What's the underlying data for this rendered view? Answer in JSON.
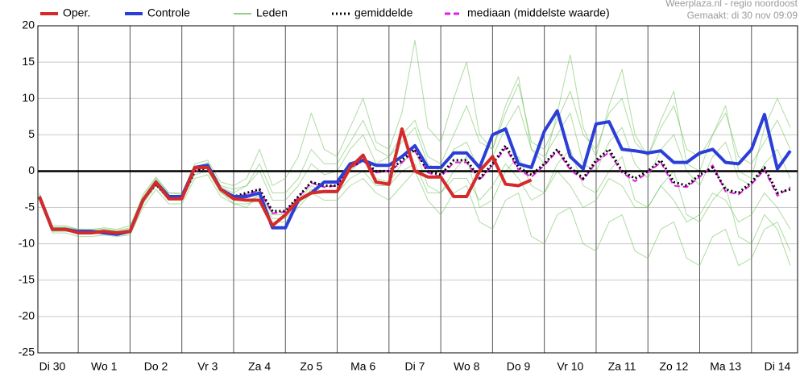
{
  "chart_data": {
    "type": "line",
    "credit_lines": [
      "Weerplaza.nl - regio noordoost",
      "Gemaakt: di 30 nov 09:09"
    ],
    "xlim": [
      0.22,
      14.89
    ],
    "xticks": [
      {
        "value": 0.5,
        "label": "Di 30"
      },
      {
        "value": 1.5,
        "label": "Wo 1"
      },
      {
        "value": 2.5,
        "label": "Do 2"
      },
      {
        "value": 3.5,
        "label": "Vr 3"
      },
      {
        "value": 4.5,
        "label": "Za 4"
      },
      {
        "value": 5.5,
        "label": "Zo 5"
      },
      {
        "value": 6.5,
        "label": "Ma 6"
      },
      {
        "value": 7.5,
        "label": "Di 7"
      },
      {
        "value": 8.5,
        "label": "Wo 8"
      },
      {
        "value": 9.5,
        "label": "Do 9"
      },
      {
        "value": 10.5,
        "label": "Vr 10"
      },
      {
        "value": 11.5,
        "label": "Za 11"
      },
      {
        "value": 12.5,
        "label": "Zo 12"
      },
      {
        "value": 13.5,
        "label": "Ma 13"
      },
      {
        "value": 14.5,
        "label": "Di 14"
      }
    ],
    "xgrid": [
      1,
      2,
      3,
      4,
      5,
      6,
      7,
      8,
      9,
      10,
      11,
      12,
      13,
      14
    ],
    "ylim": [
      -25,
      20
    ],
    "yticks": [
      -25,
      -20,
      -15,
      -10,
      -5,
      0,
      5,
      10,
      15,
      20
    ],
    "grid": true,
    "zero_line": true,
    "legend": "top",
    "x": [
      0.25,
      0.5,
      0.75,
      1,
      1.25,
      1.5,
      1.75,
      2,
      2.25,
      2.5,
      2.75,
      3,
      3.25,
      3.5,
      3.75,
      4,
      4.25,
      4.5,
      4.75,
      5,
      5.25,
      5.5,
      5.75,
      6,
      6.25,
      6.5,
      6.75,
      7,
      7.25,
      7.5,
      7.75,
      8,
      8.25,
      8.5,
      8.75,
      9,
      9.25,
      9.5,
      9.75,
      10,
      10.25,
      10.5,
      10.75,
      11,
      11.25,
      11.5,
      11.75,
      12,
      12.25,
      12.5,
      12.75,
      13,
      13.25,
      13.5,
      13.75,
      14,
      14.25,
      14.5,
      14.75
    ],
    "series": [
      {
        "name": "Oper.",
        "color": "#d42a2a",
        "style": "solid",
        "width": 4,
        "values": [
          -3.5,
          -8,
          -8,
          -8.5,
          -8.5,
          -8.3,
          -8.5,
          -8.3,
          -4,
          -1.5,
          -3.8,
          -3.8,
          0.5,
          0.5,
          -2.5,
          -3.8,
          -4,
          -4,
          -7.5,
          -6,
          -4,
          -3,
          -2.8,
          -2.8,
          0.5,
          2.2,
          -1.5,
          -1.8,
          5.8,
          0,
          -0.8,
          -0.8,
          -3.5,
          -3.5,
          0,
          2,
          -1.8,
          -2,
          -1.2,
          null,
          null,
          null,
          null,
          null,
          null,
          null,
          null,
          null,
          null,
          null,
          null,
          null,
          null,
          null,
          null,
          null,
          null,
          null,
          null
        ]
      },
      {
        "name": "Controle",
        "color": "#2b3fd6",
        "style": "solid",
        "width": 4,
        "values": [
          -3.5,
          -8,
          -8,
          -8.3,
          -8.3,
          -8.5,
          -8.7,
          -8.3,
          -4,
          -1.5,
          -3.5,
          -3.5,
          0.5,
          0.8,
          -2.5,
          -3.5,
          -3.5,
          -3,
          -7.8,
          -7.8,
          -4,
          -3,
          -1.5,
          -1.5,
          1,
          1.5,
          0.8,
          0.8,
          2,
          3.5,
          0.5,
          0.5,
          2.5,
          2.5,
          0.5,
          5,
          5.8,
          1,
          0.5,
          5.5,
          8.3,
          2,
          0.3,
          6.5,
          6.8,
          3,
          2.8,
          2.5,
          2.8,
          1.2,
          1.2,
          2.5,
          3,
          1.2,
          1,
          3,
          7.8,
          0.3,
          2.8
        ]
      },
      {
        "name": "Leden",
        "color": "#6cbf55",
        "style": "thin",
        "width": 1,
        "values": [
          [
            -3,
            -7.5,
            -7.5,
            -8,
            -8,
            -7.8,
            -8,
            -7.5,
            -3.5,
            -1,
            -3,
            -3,
            0.5,
            1.2,
            -2,
            -2.5,
            -2,
            1,
            -3,
            -3,
            -1,
            3,
            1,
            1,
            4,
            7,
            3,
            2,
            5,
            7,
            2,
            1,
            5,
            9,
            4,
            3,
            8,
            12,
            4,
            3,
            7,
            11,
            5,
            3,
            8,
            10,
            4,
            2,
            6,
            9,
            3,
            2,
            5,
            8,
            2,
            1,
            4,
            7,
            3
          ],
          [
            -4,
            -8.5,
            -8.5,
            -9,
            -9,
            -8.8,
            -9,
            -8.8,
            -5,
            -2.5,
            -4.5,
            -4.5,
            -1,
            -0.5,
            -3.5,
            -4.5,
            -4.5,
            -4,
            -7,
            -7,
            -5,
            -3,
            -4,
            -4,
            -2,
            -1,
            -3,
            -4,
            -2,
            0,
            -4,
            -6,
            -3,
            -2,
            -7,
            -8,
            -4,
            -3,
            -9,
            -10,
            -6,
            -5,
            -10,
            -11,
            -7,
            -6,
            -11,
            -12,
            -8,
            -7,
            -12,
            -13,
            -9,
            -8,
            -13,
            -12,
            -8,
            -7,
            -11
          ],
          [
            -3.5,
            -7.8,
            -7.8,
            -8.2,
            -8.2,
            -8,
            -8.2,
            -8,
            -3.8,
            -1.2,
            -3.5,
            -3.5,
            0.3,
            1,
            -2.2,
            -3,
            -2,
            0,
            -4,
            -4,
            -2,
            1,
            -0.5,
            0,
            3,
            5,
            1,
            2,
            4,
            6,
            1,
            0,
            3,
            4,
            0,
            2,
            6,
            9,
            3,
            2,
            5,
            8,
            1,
            0,
            4,
            6,
            1,
            -1,
            3,
            5,
            0,
            -2,
            2,
            4,
            -1,
            -2,
            1,
            3,
            -1
          ],
          [
            -3.8,
            -8.2,
            -8.2,
            -8.6,
            -8.6,
            -8.6,
            -8.8,
            -8.5,
            -4.5,
            -2,
            -4,
            -4,
            -0.5,
            0,
            -3,
            -4,
            -4,
            -3.5,
            -6.5,
            -6.5,
            -4.5,
            -2.5,
            -3,
            -3,
            -1,
            0,
            -2,
            -2,
            0,
            1,
            -3,
            -3,
            -1,
            -1,
            -4,
            -2,
            1,
            -1,
            -4,
            -3,
            0,
            -2,
            -5,
            -4,
            -1,
            -2,
            -5,
            -5,
            -2,
            -4,
            -7,
            -6,
            -3,
            -4,
            -7,
            -6,
            -3,
            -5,
            -8
          ],
          [
            -3.2,
            -7.7,
            -7.7,
            -8,
            -8.1,
            -8,
            -8.2,
            -7.8,
            -3.2,
            -0.8,
            -3,
            -3.2,
            1,
            1.5,
            -1.5,
            -2,
            -1,
            3,
            -2,
            -1,
            2,
            8,
            3,
            2,
            6,
            10,
            4,
            3,
            8,
            18,
            6,
            4,
            10,
            15,
            5,
            3,
            9,
            13,
            3,
            1,
            8,
            16,
            6,
            2,
            9,
            14,
            5,
            2,
            7,
            11,
            1,
            0,
            5,
            9,
            0,
            -1,
            6,
            10,
            6
          ],
          [
            -4,
            -8.3,
            -8.3,
            -8.4,
            -8.5,
            -8.2,
            -8.5,
            -8.3,
            -4.2,
            -1.6,
            -3.6,
            -3.6,
            0.2,
            0.7,
            -2.8,
            -4.5,
            -5,
            -3,
            -6,
            -6,
            -4,
            -2,
            -3,
            -3,
            0,
            1.5,
            -1,
            -1.5,
            1,
            3,
            -2,
            -3,
            0,
            2,
            -5,
            -4,
            0,
            2,
            -2,
            -3,
            1,
            3,
            -2,
            -3,
            0,
            2,
            -4,
            -5,
            -2,
            0,
            -6,
            -7,
            -4,
            -2,
            -9,
            -10,
            -6,
            -8,
            -13
          ]
        ]
      },
      {
        "name": "gemiddelde",
        "color": "#000000",
        "style": "dotted",
        "width": 3,
        "values": [
          -3.5,
          -8,
          -8,
          -8.3,
          -8.3,
          -8.4,
          -8.5,
          -8.2,
          -4,
          -1.8,
          -3.8,
          -3.8,
          0,
          0.5,
          -2.5,
          -3.5,
          -3,
          -2.5,
          -5.5,
          -5.5,
          -3.5,
          -1.5,
          -2,
          -2,
          0.5,
          1.5,
          0,
          0,
          1.5,
          3,
          0,
          -0.5,
          1.5,
          1.5,
          -1,
          1,
          3.5,
          0.5,
          -0.5,
          1,
          3,
          0.5,
          -1,
          1.5,
          3,
          0,
          -1,
          0,
          1.5,
          -1.5,
          -2,
          -0.5,
          0.5,
          -2.5,
          -3,
          -1.5,
          0.5,
          -3,
          -2.5
        ]
      },
      {
        "name": "mediaan (middelste waarde)",
        "color": "#e020e0",
        "style": "dashed",
        "width": 2,
        "values": [
          -3.5,
          -8,
          -8,
          -8.3,
          -8.3,
          -8.4,
          -8.5,
          -8.2,
          -4,
          -1.8,
          -3.8,
          -3.8,
          0,
          0.5,
          -2.5,
          -3.6,
          -3.2,
          -2.6,
          -5.8,
          -5.6,
          -3.6,
          -1.6,
          -2.2,
          -2,
          0.4,
          1.4,
          -0.2,
          0,
          1.2,
          2.8,
          -0.2,
          -0.8,
          1.2,
          1.2,
          -1.2,
          0.8,
          3.2,
          0.2,
          -0.8,
          0.8,
          2.8,
          0.2,
          -1.2,
          1.2,
          2.6,
          -0.2,
          -1.4,
          -0.2,
          1.2,
          -2,
          -2.2,
          -0.8,
          0.8,
          -2.8,
          -3.2,
          -1.8,
          0.2,
          -3.4,
          -2.2
        ]
      }
    ]
  }
}
